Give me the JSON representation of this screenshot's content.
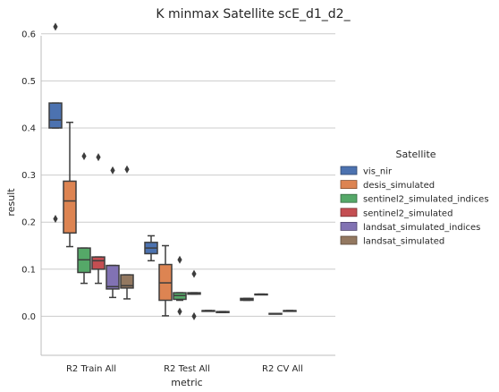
{
  "chart_data": {
    "type": "boxplot",
    "title": "K minmax Satellite scE_d1_d2_",
    "xlabel": "metric",
    "ylabel": "result",
    "ylim": [
      -0.03,
      0.65
    ],
    "yticks": [
      "0.0",
      "0.1",
      "0.2",
      "0.3",
      "0.4",
      "0.5",
      "0.6"
    ],
    "grid": "horizontal",
    "legend_placement": "right",
    "legend_title": "Satellite",
    "categories": [
      "R2 Train All",
      "R2 Test All",
      "R2 CV All"
    ],
    "series": [
      {
        "name": "vis_nir",
        "color": "#4c72b0",
        "boxes": [
          {
            "whislo": 0.4,
            "q1": 0.4,
            "med": 0.417,
            "q3": 0.453,
            "whishi": 0.453,
            "fliers": [
              0.615,
              0.207
            ]
          },
          {
            "whislo": 0.118,
            "q1": 0.133,
            "med": 0.145,
            "q3": 0.157,
            "whishi": 0.171,
            "fliers": []
          },
          {
            "whislo": 0.034,
            "q1": 0.034,
            "med": 0.036,
            "q3": 0.038,
            "whishi": 0.038,
            "fliers": []
          }
        ]
      },
      {
        "name": "desis_simulated",
        "color": "#dd8452",
        "boxes": [
          {
            "whislo": 0.148,
            "q1": 0.177,
            "med": 0.245,
            "q3": 0.287,
            "whishi": 0.412,
            "fliers": []
          },
          {
            "whislo": 0.001,
            "q1": 0.034,
            "med": 0.071,
            "q3": 0.11,
            "whishi": 0.15,
            "fliers": []
          },
          {
            "whislo": 0.047,
            "q1": 0.047,
            "med": 0.047,
            "q3": 0.047,
            "whishi": 0.047,
            "fliers": []
          }
        ]
      },
      {
        "name": "sentinel2_simulated_indices",
        "color": "#55a868",
        "boxes": [
          {
            "whislo": 0.07,
            "q1": 0.093,
            "med": 0.12,
            "q3": 0.145,
            "whishi": 0.145,
            "fliers": [
              0.34
            ]
          },
          {
            "whislo": 0.034,
            "q1": 0.036,
            "med": 0.044,
            "q3": 0.05,
            "whishi": 0.05,
            "fliers": [
              0.12,
              0.01
            ]
          },
          {
            "whislo": 0.006,
            "q1": 0.006,
            "med": 0.006,
            "q3": 0.006,
            "whishi": 0.006,
            "fliers": []
          }
        ]
      },
      {
        "name": "sentinel2_simulated",
        "color": "#c44e52",
        "boxes": [
          {
            "whislo": 0.07,
            "q1": 0.1,
            "med": 0.118,
            "q3": 0.126,
            "whishi": 0.126,
            "fliers": [
              0.338
            ]
          },
          {
            "whislo": 0.047,
            "q1": 0.047,
            "med": 0.049,
            "q3": 0.05,
            "whishi": 0.05,
            "fliers": [
              0.09,
              0.0
            ]
          },
          {
            "whislo": 0.012,
            "q1": 0.012,
            "med": 0.012,
            "q3": 0.012,
            "whishi": 0.012,
            "fliers": []
          }
        ]
      },
      {
        "name": "landsat_simulated_indices",
        "color": "#8172b3",
        "boxes": [
          {
            "whislo": 0.04,
            "q1": 0.058,
            "med": 0.063,
            "q3": 0.108,
            "whishi": 0.108,
            "fliers": [
              0.31
            ]
          },
          {
            "whislo": 0.012,
            "q1": 0.012,
            "med": 0.012,
            "q3": 0.012,
            "whishi": 0.012,
            "fliers": []
          },
          null
        ]
      },
      {
        "name": "landsat_simulated",
        "color": "#937860",
        "boxes": [
          {
            "whislo": 0.037,
            "q1": 0.06,
            "med": 0.065,
            "q3": 0.088,
            "whishi": 0.088,
            "fliers": [
              0.312
            ]
          },
          {
            "whislo": 0.008,
            "q1": 0.008,
            "med": 0.009,
            "q3": 0.01,
            "whishi": 0.01,
            "fliers": []
          },
          null
        ]
      }
    ]
  }
}
